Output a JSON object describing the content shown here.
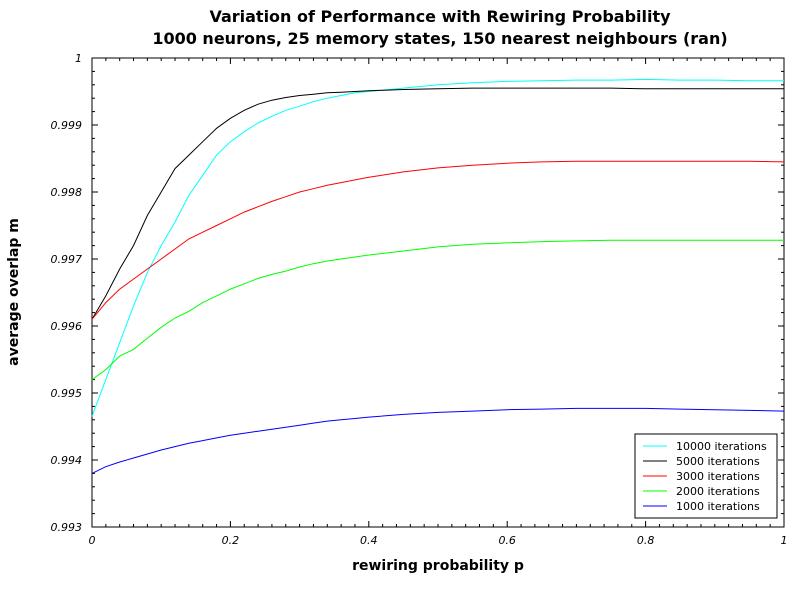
{
  "chart_data": {
    "type": "line",
    "title": "Variation of Performance with Rewiring Probability",
    "subtitle": "1000 neurons, 25 memory states, 150 nearest neighbours (ran)",
    "xlabel": "rewiring probability p",
    "ylabel": "average overlap m",
    "xlim": [
      0,
      1
    ],
    "ylim": [
      0.993,
      1.0
    ],
    "xticks": [
      "0",
      "0.2",
      "0.4",
      "0.6",
      "0.8",
      "1"
    ],
    "yticks": [
      "0.993",
      "0.994",
      "0.995",
      "0.996",
      "0.997",
      "0.998",
      "0.999",
      "1"
    ],
    "grid": false,
    "legend_position": "bottom-right",
    "series": [
      {
        "name": "10000 iterations",
        "color": "#00ffff",
        "x": [
          0,
          0.02,
          0.04,
          0.06,
          0.08,
          0.1,
          0.12,
          0.14,
          0.16,
          0.18,
          0.2,
          0.22,
          0.24,
          0.26,
          0.28,
          0.3,
          0.32,
          0.34,
          0.36,
          0.38,
          0.4,
          0.45,
          0.5,
          0.55,
          0.6,
          0.65,
          0.7,
          0.75,
          0.8,
          0.85,
          0.9,
          0.95,
          1.0
        ],
        "values": [
          0.99465,
          0.9952,
          0.99575,
          0.9963,
          0.9968,
          0.9972,
          0.99755,
          0.99795,
          0.99825,
          0.99855,
          0.99875,
          0.9989,
          0.99903,
          0.99913,
          0.99922,
          0.99928,
          0.99935,
          0.9994,
          0.99944,
          0.99948,
          0.9995,
          0.99955,
          0.9996,
          0.99963,
          0.99965,
          0.99966,
          0.99967,
          0.99967,
          0.99968,
          0.99967,
          0.99967,
          0.99966,
          0.99966
        ]
      },
      {
        "name": "5000 iterations",
        "color": "#000000",
        "x": [
          0,
          0.02,
          0.04,
          0.06,
          0.08,
          0.1,
          0.12,
          0.14,
          0.16,
          0.18,
          0.2,
          0.22,
          0.24,
          0.26,
          0.28,
          0.3,
          0.32,
          0.34,
          0.36,
          0.38,
          0.4,
          0.45,
          0.5,
          0.55,
          0.6,
          0.65,
          0.7,
          0.75,
          0.8,
          0.85,
          0.9,
          0.95,
          1.0
        ],
        "values": [
          0.9961,
          0.99645,
          0.99685,
          0.9972,
          0.99765,
          0.998,
          0.99835,
          0.99855,
          0.99875,
          0.99895,
          0.9991,
          0.99922,
          0.99931,
          0.99937,
          0.99941,
          0.99944,
          0.99946,
          0.99948,
          0.99949,
          0.9995,
          0.99951,
          0.99953,
          0.99954,
          0.99955,
          0.99955,
          0.99955,
          0.99955,
          0.99955,
          0.99954,
          0.99954,
          0.99954,
          0.99954,
          0.99954
        ]
      },
      {
        "name": "3000 iterations",
        "color": "#ff0000",
        "x": [
          0,
          0.02,
          0.04,
          0.06,
          0.08,
          0.1,
          0.12,
          0.14,
          0.16,
          0.18,
          0.2,
          0.22,
          0.24,
          0.26,
          0.28,
          0.3,
          0.32,
          0.34,
          0.36,
          0.38,
          0.4,
          0.45,
          0.5,
          0.55,
          0.6,
          0.65,
          0.7,
          0.75,
          0.8,
          0.85,
          0.9,
          0.95,
          1.0
        ],
        "values": [
          0.9961,
          0.99635,
          0.99655,
          0.9967,
          0.99685,
          0.997,
          0.99715,
          0.9973,
          0.9974,
          0.9975,
          0.9976,
          0.9977,
          0.99778,
          0.99786,
          0.99793,
          0.998,
          0.99805,
          0.9981,
          0.99814,
          0.99818,
          0.99822,
          0.9983,
          0.99836,
          0.9984,
          0.99843,
          0.99845,
          0.99846,
          0.99846,
          0.99846,
          0.99846,
          0.99846,
          0.99846,
          0.99845
        ]
      },
      {
        "name": "2000 iterations",
        "color": "#00ff00",
        "x": [
          0,
          0.02,
          0.04,
          0.06,
          0.08,
          0.1,
          0.12,
          0.14,
          0.16,
          0.18,
          0.2,
          0.22,
          0.24,
          0.26,
          0.28,
          0.3,
          0.32,
          0.34,
          0.36,
          0.38,
          0.4,
          0.45,
          0.5,
          0.55,
          0.6,
          0.65,
          0.7,
          0.75,
          0.8,
          0.85,
          0.9,
          0.95,
          1.0
        ],
        "values": [
          0.9952,
          0.99535,
          0.99555,
          0.99565,
          0.99582,
          0.99598,
          0.99612,
          0.99622,
          0.99635,
          0.99645,
          0.99655,
          0.99663,
          0.99671,
          0.99677,
          0.99682,
          0.99688,
          0.99693,
          0.99697,
          0.997,
          0.99703,
          0.99706,
          0.99712,
          0.99718,
          0.99722,
          0.99724,
          0.99726,
          0.99727,
          0.99728,
          0.99728,
          0.99728,
          0.99728,
          0.99728,
          0.99728
        ]
      },
      {
        "name": "1000 iterations",
        "color": "#0000ff",
        "x": [
          0,
          0.02,
          0.04,
          0.06,
          0.08,
          0.1,
          0.12,
          0.14,
          0.16,
          0.18,
          0.2,
          0.22,
          0.24,
          0.26,
          0.28,
          0.3,
          0.32,
          0.34,
          0.36,
          0.38,
          0.4,
          0.45,
          0.5,
          0.55,
          0.6,
          0.65,
          0.7,
          0.75,
          0.8,
          0.85,
          0.9,
          0.95,
          1.0
        ],
        "values": [
          0.9938,
          0.9939,
          0.99397,
          0.99403,
          0.99409,
          0.99415,
          0.9942,
          0.99425,
          0.99429,
          0.99433,
          0.99437,
          0.9944,
          0.99443,
          0.99446,
          0.99449,
          0.99452,
          0.99455,
          0.99458,
          0.9946,
          0.99462,
          0.99464,
          0.99468,
          0.99471,
          0.99473,
          0.99475,
          0.99476,
          0.99477,
          0.99477,
          0.99477,
          0.99476,
          0.99475,
          0.99474,
          0.99473
        ]
      }
    ]
  }
}
